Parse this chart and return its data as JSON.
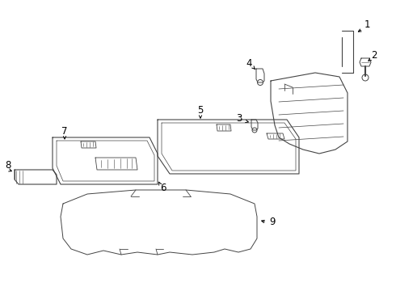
{
  "bg_color": "#ffffff",
  "line_color": "#444444",
  "label_color": "#000000",
  "label_fontsize": 8.5,
  "fig_width": 4.9,
  "fig_height": 3.6,
  "dpi": 100
}
